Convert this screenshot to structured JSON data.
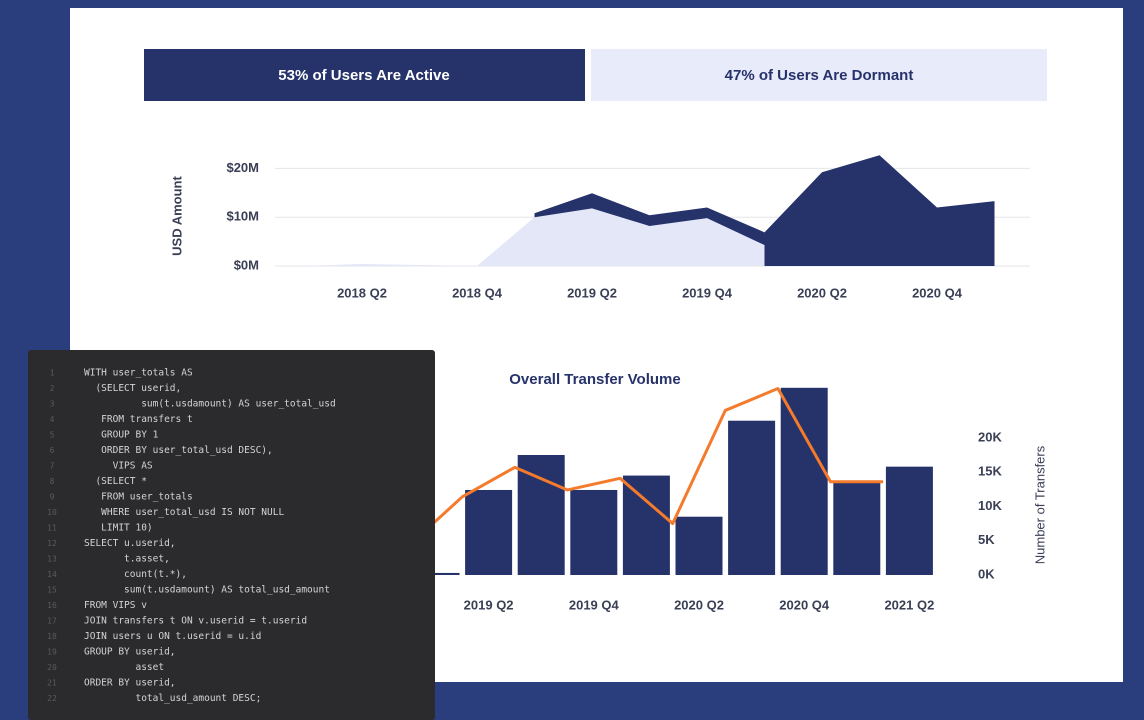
{
  "banner": {
    "active": "53% of Users Are Active",
    "dormant": "47% of Users Are Dormant"
  },
  "chart_data": [
    {
      "type": "area",
      "y_label": "USD Amount",
      "categories": [
        null,
        "2018 Q2",
        null,
        "2018 Q4",
        null,
        "2019 Q2",
        null,
        "2019 Q4",
        null,
        "2020 Q2",
        null,
        "2020 Q4",
        null
      ],
      "series": [
        {
          "color": "#26326a",
          "values": [
            null,
            null,
            null,
            null,
            10.8,
            14.9,
            10.4,
            12,
            6.9,
            19.2,
            22.7,
            12,
            13.3
          ]
        },
        {
          "color": "#e3e7f8",
          "values": [
            0,
            0.4,
            0.2,
            0,
            10,
            11.8,
            8.2,
            9.8,
            4.3,
            null,
            null,
            null,
            null
          ]
        }
      ],
      "ylim": [
        0,
        25
      ],
      "yticks": [
        {
          "value": 0,
          "label": "$0M"
        },
        {
          "value": 10,
          "label": "$10M"
        },
        {
          "value": 20,
          "label": "$20M"
        }
      ],
      "grid": true
    },
    {
      "type": "bar",
      "title": "Overall Transfer Volume",
      "y2_label": "Number of Transfers",
      "categories": [
        null,
        "2019 Q2",
        null,
        "2019 Q4",
        null,
        "2020 Q2",
        null,
        "2020 Q4",
        null,
        "2021 Q2"
      ],
      "series": [
        {
          "type": "bar",
          "axis": "y2",
          "color": "#26326a",
          "values": [
            300,
            12400,
            17500,
            12400,
            14500,
            8500,
            22500,
            27300,
            13600,
            15800
          ]
        },
        {
          "type": "line",
          "axis": "y2",
          "color": "#f47a2c",
          "values": [
            4400,
            11400,
            15700,
            12400,
            14100,
            7500,
            24000,
            27200,
            13600,
            13600
          ]
        }
      ],
      "y2lim": [
        0,
        28000
      ],
      "y2ticks": [
        {
          "value": 0,
          "label": "0K"
        },
        {
          "value": 5000,
          "label": "5K"
        },
        {
          "value": 10000,
          "label": "10K"
        },
        {
          "value": 15000,
          "label": "15K"
        },
        {
          "value": 20000,
          "label": "20K"
        }
      ]
    }
  ],
  "code": {
    "line_numbers": [
      "1",
      "2",
      "3",
      "4",
      "5",
      "6",
      "7",
      "8",
      "9",
      "10",
      "11",
      "12",
      "13",
      "14",
      "15",
      "16",
      "17",
      "18",
      "19",
      "20",
      "21",
      "22"
    ],
    "lines": [
      "WITH user_totals AS",
      "  (SELECT userid,",
      "          sum(t.usdamount) AS user_total_usd",
      "   FROM transfers t",
      "   GROUP BY 1",
      "   ORDER BY user_total_usd DESC),",
      "     VIPS AS",
      "  (SELECT *",
      "   FROM user_totals",
      "   WHERE user_total_usd IS NOT NULL",
      "   LIMIT 10)",
      "SELECT u.userid,",
      "       t.asset,",
      "       count(t.*),",
      "       sum(t.usdamount) AS total_usd_amount",
      "FROM VIPS v",
      "JOIN transfers t ON v.userid = t.userid",
      "JOIN users u ON t.userid = u.id",
      "GROUP BY userid,",
      "         asset",
      "ORDER BY userid,",
      "         total_usd_amount DESC;"
    ]
  }
}
